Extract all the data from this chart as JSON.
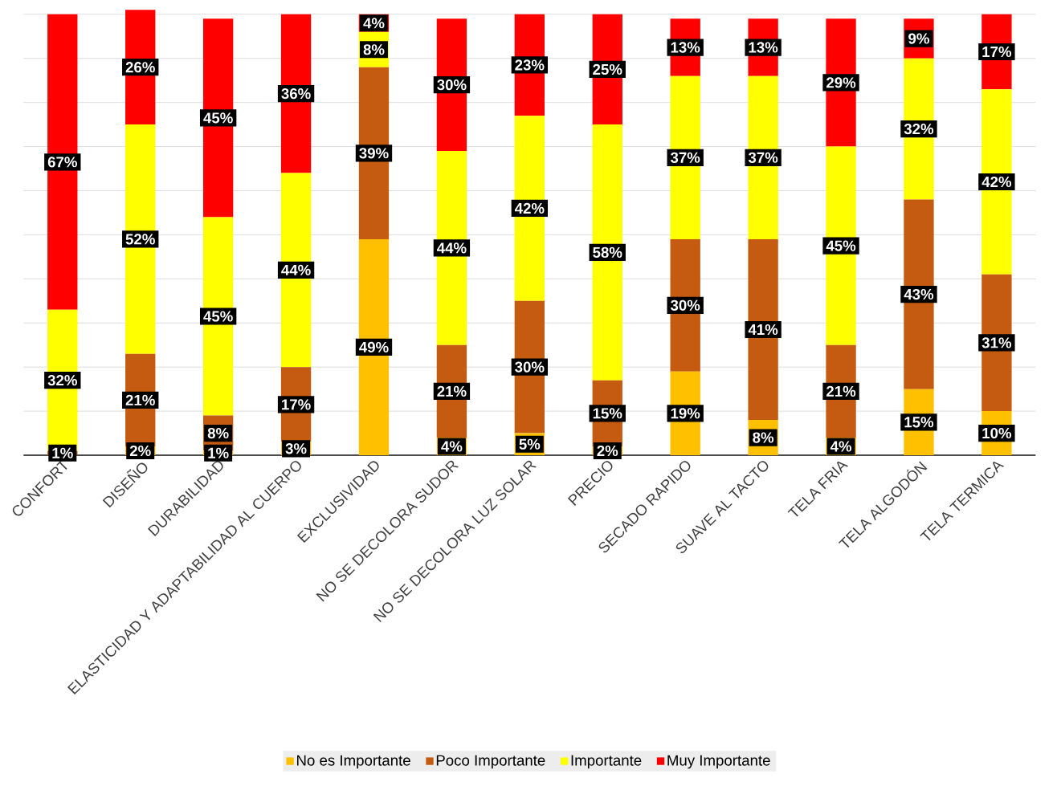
{
  "chart_data": {
    "type": "bar",
    "stacked": true,
    "categories": [
      "CONFORT",
      "DISEÑO",
      "DURABILIDAD",
      "ELASTICIDAD Y ADAPTABILIDAD AL CUERPO",
      "EXCLUSIVIDAD",
      "NO SE DECOLORA SUDOR",
      "NO SE DECOLORA LUZ SOLAR",
      "PRECIO",
      "SECADO RAPIDO",
      "SUAVE AL TACTO",
      "TELA FRIA",
      "TELA ALGODÓN",
      "TELA TERMICA"
    ],
    "series": [
      {
        "name": "No es Importante",
        "color": "#ffc000",
        "values": [
          null,
          2,
          1,
          3,
          49,
          4,
          5,
          2,
          19,
          8,
          4,
          15,
          10
        ],
        "value_labels": [
          null,
          "2%",
          "1%",
          "3%",
          "49%",
          "4%",
          "5%",
          "2%",
          "19%",
          "8%",
          "4%",
          "15%",
          "10%"
        ]
      },
      {
        "name": "Poco Importante",
        "color": "#c55a11",
        "values": [
          1,
          21,
          8,
          17,
          39,
          21,
          30,
          15,
          30,
          41,
          21,
          43,
          31
        ],
        "value_labels": [
          "1%",
          "21%",
          "8%",
          "17%",
          "39%",
          "21%",
          "30%",
          "15%",
          "30%",
          "41%",
          "21%",
          "43%",
          "31%"
        ]
      },
      {
        "name": "Importante",
        "color": "#ffff00",
        "values": [
          32,
          52,
          45,
          44,
          8,
          44,
          42,
          58,
          37,
          37,
          45,
          32,
          42
        ],
        "value_labels": [
          "32%",
          "52%",
          "45%",
          "44%",
          "8%",
          "44%",
          "42%",
          "58%",
          "37%",
          "37%",
          "45%",
          "32%",
          "42%"
        ]
      },
      {
        "name": "Muy Importante",
        "color": "#ff0000",
        "values": [
          67,
          26,
          45,
          36,
          4,
          30,
          23,
          25,
          13,
          13,
          29,
          9,
          17
        ],
        "value_labels": [
          "67%",
          "26%",
          "45%",
          "36%",
          "4%",
          "30%",
          "23%",
          "25%",
          "13%",
          "13%",
          "29%",
          "9%",
          "17%"
        ]
      }
    ],
    "ylim": [
      0,
      101
    ],
    "yticks": [
      {
        "value": 0,
        "label": null
      },
      {
        "value": 10,
        "label": null
      },
      {
        "value": 20,
        "label": null
      },
      {
        "value": 30,
        "label": null
      },
      {
        "value": 40,
        "label": null
      },
      {
        "value": 50,
        "label": null
      },
      {
        "value": 60,
        "label": null
      },
      {
        "value": 70,
        "label": null
      },
      {
        "value": 80,
        "label": null
      },
      {
        "value": 90,
        "label": null
      },
      {
        "value": 100,
        "label": null
      }
    ],
    "tick_labels": "x",
    "grid": "y",
    "legend": "bottom"
  }
}
